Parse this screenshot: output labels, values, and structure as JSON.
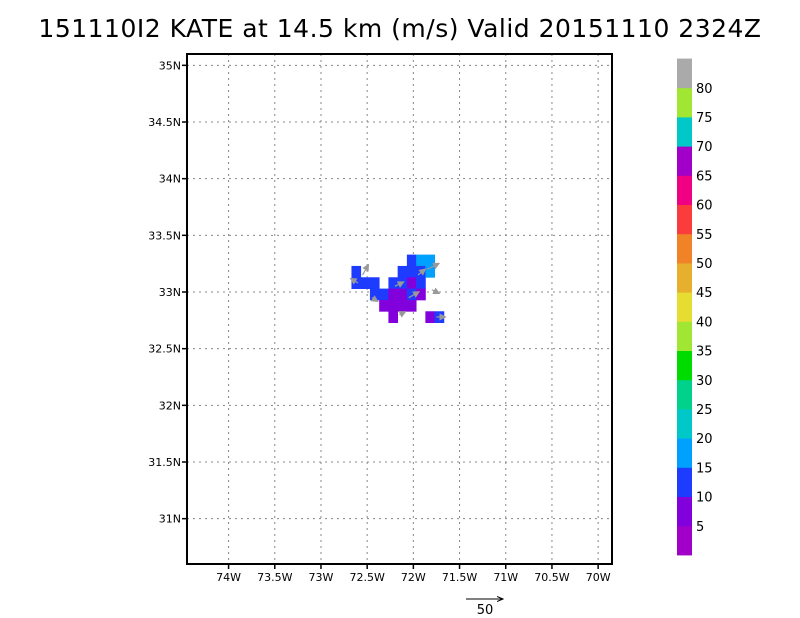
{
  "title": "151110I2 KATE at 14.5 km (m/s) Valid 20151110 2324Z",
  "chart_data": {
    "type": "heatmap",
    "title": "151110I2 KATE at 14.5 km (m/s) Valid 20151110 2324Z",
    "x_unit": "longitude",
    "y_unit": "latitude",
    "xlim": [
      -74.45,
      -69.85
    ],
    "ylim": [
      30.6,
      35.1
    ],
    "x_ticks": [
      {
        "value": -74.0,
        "label": "74W"
      },
      {
        "value": -73.5,
        "label": "73.5W"
      },
      {
        "value": -73.0,
        "label": "73W"
      },
      {
        "value": -72.5,
        "label": "72.5W"
      },
      {
        "value": -72.0,
        "label": "72W"
      },
      {
        "value": -71.5,
        "label": "71.5W"
      },
      {
        "value": -71.0,
        "label": "71W"
      },
      {
        "value": -70.5,
        "label": "70.5W"
      },
      {
        "value": -70.0,
        "label": "70W"
      }
    ],
    "y_ticks": [
      {
        "value": 31.0,
        "label": "31N"
      },
      {
        "value": 31.5,
        "label": "31.5N"
      },
      {
        "value": 32.0,
        "label": "32N"
      },
      {
        "value": 32.5,
        "label": "32.5N"
      },
      {
        "value": 33.0,
        "label": "33N"
      },
      {
        "value": 33.5,
        "label": "33.5N"
      },
      {
        "value": 34.0,
        "label": "34N"
      },
      {
        "value": 34.5,
        "label": "34.5N"
      },
      {
        "value": 35.0,
        "label": "35N"
      }
    ],
    "grid": true,
    "cell_size_deg": 0.1,
    "cells": [
      {
        "lon": -72.62,
        "lat": 33.18,
        "value": 12
      },
      {
        "lon": -72.62,
        "lat": 33.08,
        "value": 12
      },
      {
        "lon": -72.52,
        "lat": 33.08,
        "value": 12
      },
      {
        "lon": -72.42,
        "lat": 33.08,
        "value": 12
      },
      {
        "lon": -72.42,
        "lat": 32.98,
        "value": 12
      },
      {
        "lon": -72.32,
        "lat": 32.98,
        "value": 12
      },
      {
        "lon": -72.32,
        "lat": 32.88,
        "value": 8
      },
      {
        "lon": -72.22,
        "lat": 33.08,
        "value": 12
      },
      {
        "lon": -72.22,
        "lat": 32.98,
        "value": 8
      },
      {
        "lon": -72.22,
        "lat": 32.88,
        "value": 8
      },
      {
        "lon": -72.22,
        "lat": 32.78,
        "value": 6
      },
      {
        "lon": -72.12,
        "lat": 33.18,
        "value": 12
      },
      {
        "lon": -72.12,
        "lat": 33.08,
        "value": 12
      },
      {
        "lon": -72.12,
        "lat": 32.98,
        "value": 6
      },
      {
        "lon": -72.12,
        "lat": 32.88,
        "value": 8
      },
      {
        "lon": -72.02,
        "lat": 33.28,
        "value": 12
      },
      {
        "lon": -72.02,
        "lat": 33.18,
        "value": 12
      },
      {
        "lon": -72.02,
        "lat": 33.08,
        "value": 8
      },
      {
        "lon": -72.02,
        "lat": 32.98,
        "value": 12
      },
      {
        "lon": -72.02,
        "lat": 32.88,
        "value": 8
      },
      {
        "lon": -71.92,
        "lat": 33.28,
        "value": 17
      },
      {
        "lon": -71.92,
        "lat": 33.18,
        "value": 12
      },
      {
        "lon": -71.92,
        "lat": 33.08,
        "value": 12
      },
      {
        "lon": -71.92,
        "lat": 32.98,
        "value": 8
      },
      {
        "lon": -71.82,
        "lat": 33.28,
        "value": 17
      },
      {
        "lon": -71.82,
        "lat": 33.18,
        "value": 17
      },
      {
        "lon": -71.82,
        "lat": 32.78,
        "value": 8
      },
      {
        "lon": -71.72,
        "lat": 32.78,
        "value": 12
      }
    ],
    "vectors": [
      {
        "lon": -72.55,
        "lat": 33.15,
        "u": 8,
        "v": 14
      },
      {
        "lon": -72.6,
        "lat": 33.08,
        "u": -10,
        "v": 6
      },
      {
        "lon": -72.45,
        "lat": 32.95,
        "u": 8,
        "v": -5
      },
      {
        "lon": -72.2,
        "lat": 33.05,
        "u": 12,
        "v": 6
      },
      {
        "lon": -72.05,
        "lat": 32.95,
        "u": 14,
        "v": 8
      },
      {
        "lon": -71.95,
        "lat": 33.15,
        "u": 10,
        "v": 8
      },
      {
        "lon": -71.85,
        "lat": 33.2,
        "u": 16,
        "v": 8
      },
      {
        "lon": -71.8,
        "lat": 33.02,
        "u": 10,
        "v": -5
      },
      {
        "lon": -72.15,
        "lat": 32.8,
        "u": 8,
        "v": 4
      },
      {
        "lon": -71.75,
        "lat": 32.78,
        "u": 12,
        "v": 0
      }
    ],
    "reference_vector": {
      "label": "50",
      "magnitude": 50
    },
    "colorbar": {
      "unit": "m/s",
      "bins": [
        {
          "min": 0,
          "max": 5,
          "color": "#a000c8"
        },
        {
          "min": 5,
          "max": 10,
          "color": "#8200dc"
        },
        {
          "min": 10,
          "max": 15,
          "color": "#1e3cff"
        },
        {
          "min": 15,
          "max": 20,
          "color": "#00a0ff"
        },
        {
          "min": 20,
          "max": 25,
          "color": "#00c8c8"
        },
        {
          "min": 25,
          "max": 30,
          "color": "#00d28c"
        },
        {
          "min": 30,
          "max": 35,
          "color": "#00dc00"
        },
        {
          "min": 35,
          "max": 40,
          "color": "#a0e632"
        },
        {
          "min": 40,
          "max": 45,
          "color": "#e6dc32"
        },
        {
          "min": 45,
          "max": 50,
          "color": "#e6af2d"
        },
        {
          "min": 50,
          "max": 55,
          "color": "#f08228"
        },
        {
          "min": 55,
          "max": 60,
          "color": "#fa3c3c"
        },
        {
          "min": 60,
          "max": 65,
          "color": "#f00082"
        },
        {
          "min": 65,
          "max": 70,
          "color": "#a000c8"
        },
        {
          "min": 70,
          "max": 75,
          "color": "#00c8c8"
        },
        {
          "min": 75,
          "max": 80,
          "color": "#a0e632"
        },
        {
          "min": 80,
          "max": 85,
          "color": "#aaaaaa"
        }
      ],
      "labels": [
        "5",
        "10",
        "15",
        "20",
        "25",
        "30",
        "35",
        "40",
        "45",
        "50",
        "55",
        "60",
        "65",
        "70",
        "75",
        "80"
      ]
    }
  }
}
